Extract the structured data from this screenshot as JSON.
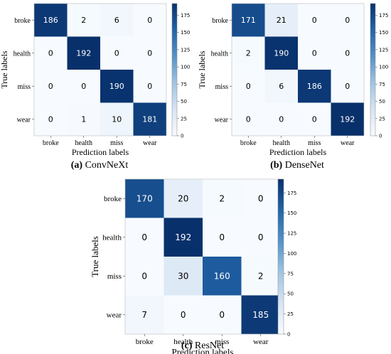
{
  "chart_data": [
    {
      "type": "heatmap",
      "caption_prefix": "(a)",
      "caption_name": "ConvNeXt",
      "xlabel": "Prediction labels",
      "ylabel": "True labels",
      "categories": [
        "broke",
        "health",
        "miss",
        "wear"
      ],
      "matrix": [
        [
          186,
          2,
          6,
          0
        ],
        [
          0,
          192,
          0,
          0
        ],
        [
          0,
          0,
          190,
          0
        ],
        [
          0,
          1,
          10,
          181
        ]
      ],
      "colorbar_ticks": [
        0,
        25,
        50,
        75,
        100,
        125,
        150,
        175
      ],
      "vmin": 0,
      "vmax": 192,
      "colormap": "Blues"
    },
    {
      "type": "heatmap",
      "caption_prefix": "(b)",
      "caption_name": "DenseNet",
      "xlabel": "Prediction labels",
      "ylabel": "True labels",
      "categories": [
        "broke",
        "health",
        "miss",
        "wear"
      ],
      "matrix": [
        [
          171,
          21,
          0,
          0
        ],
        [
          2,
          190,
          0,
          0
        ],
        [
          0,
          6,
          186,
          0
        ],
        [
          0,
          0,
          0,
          192
        ]
      ],
      "colorbar_ticks": [
        0,
        25,
        50,
        75,
        100,
        125,
        150,
        175
      ],
      "vmin": 0,
      "vmax": 192,
      "colormap": "Blues"
    },
    {
      "type": "heatmap",
      "caption_prefix": "(c)",
      "caption_name": "ResNet",
      "xlabel": "Prediction labels",
      "ylabel": "True labels",
      "categories": [
        "broke",
        "health",
        "miss",
        "wear"
      ],
      "matrix": [
        [
          170,
          20,
          2,
          0
        ],
        [
          0,
          192,
          0,
          0
        ],
        [
          0,
          30,
          160,
          2
        ],
        [
          7,
          0,
          0,
          185
        ]
      ],
      "colorbar_ticks": [
        0,
        25,
        50,
        75,
        100,
        125,
        150,
        175
      ],
      "vmin": 0,
      "vmax": 192,
      "colormap": "Blues"
    }
  ]
}
